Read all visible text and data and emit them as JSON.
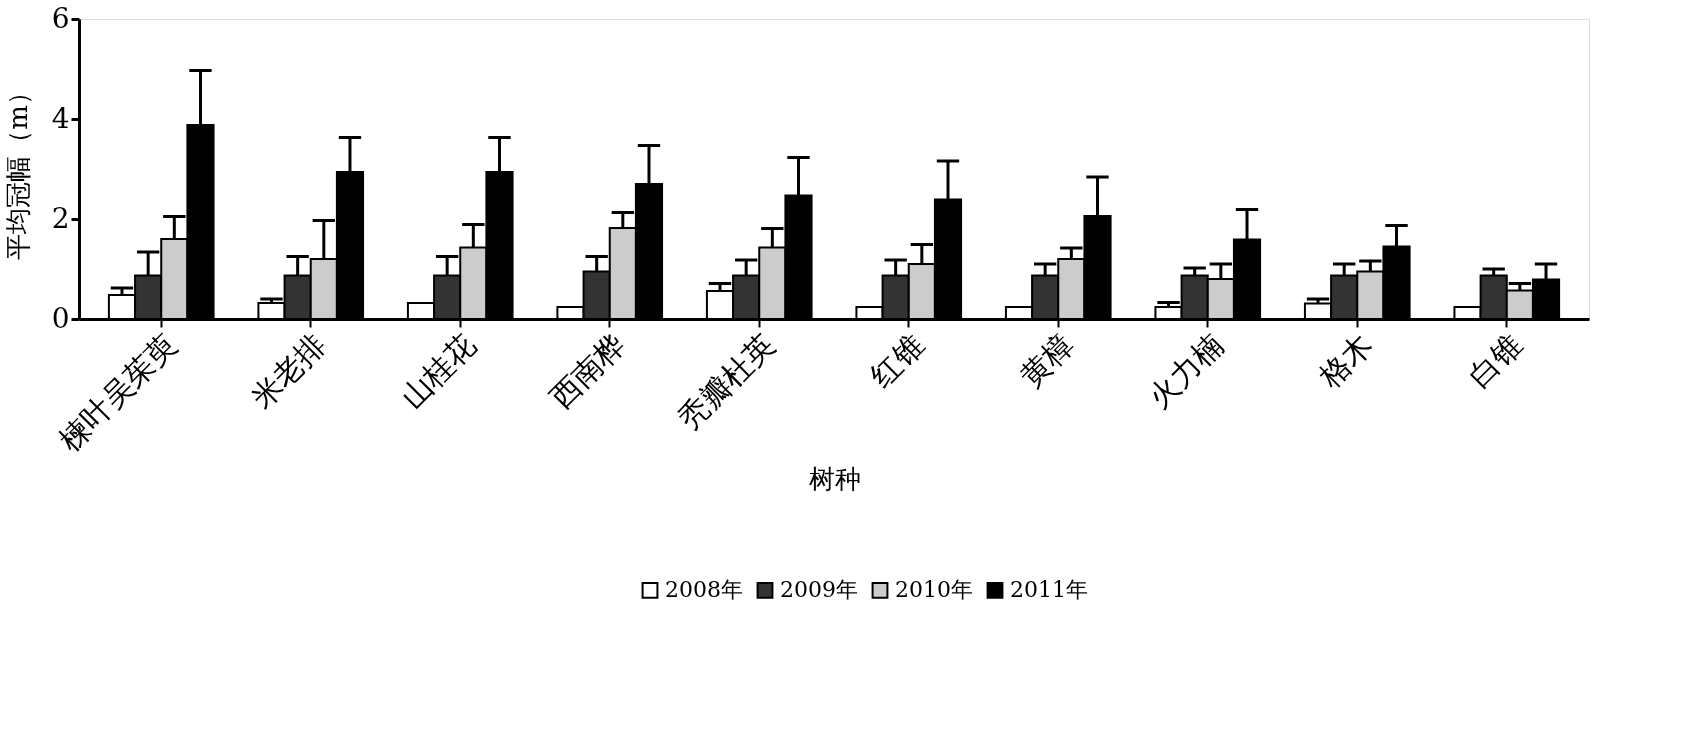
{
  "chart_data": {
    "type": "bar",
    "xlabel": "树种",
    "ylabel": "平均冠幅（m）",
    "categories": [
      "楝叶吴茱萸",
      "米老排",
      "山桂花",
      "西南桦",
      "秃瓣杜英",
      "红锥",
      "黄樟",
      "火力楠",
      "格木",
      "白锥"
    ],
    "ylim": [
      0,
      6
    ],
    "yticks": [
      0,
      2,
      4,
      6
    ],
    "grid": false,
    "legend": "bottom",
    "series": [
      {
        "name": "2008年",
        "color": "#ffffff",
        "values": [
          0.48,
          0.32,
          0.32,
          0.24,
          0.56,
          0.24,
          0.24,
          0.24,
          0.31,
          0.24
        ],
        "errors": [
          [
            0.48,
            0.62
          ],
          [
            0.32,
            0.4
          ],
          null,
          null,
          [
            0.56,
            0.71
          ],
          null,
          null,
          [
            0.24,
            0.33
          ],
          [
            0.31,
            0.4
          ],
          null
        ]
      },
      {
        "name": "2009年",
        "color": "#333333",
        "values": [
          0.87,
          0.87,
          0.87,
          0.95,
          0.87,
          0.87,
          0.87,
          0.87,
          0.87,
          0.87
        ],
        "errors": [
          [
            0.87,
            1.34
          ],
          [
            0.87,
            1.25
          ],
          [
            0.87,
            1.25
          ],
          [
            0.95,
            1.25
          ],
          [
            0.87,
            1.18
          ],
          [
            0.87,
            1.18
          ],
          [
            0.87,
            1.1
          ],
          [
            0.87,
            1.02
          ],
          [
            0.87,
            1.1
          ],
          [
            0.87,
            1.0
          ]
        ]
      },
      {
        "name": "2010年",
        "color": "#cccccc",
        "values": [
          1.6,
          1.2,
          1.43,
          1.82,
          1.43,
          1.1,
          1.2,
          0.8,
          0.95,
          0.57
        ],
        "errors": [
          [
            1.6,
            2.05
          ],
          [
            1.2,
            1.97
          ],
          [
            1.43,
            1.89
          ],
          [
            1.82,
            2.13
          ],
          [
            1.43,
            1.81
          ],
          [
            1.1,
            1.49
          ],
          [
            1.2,
            1.42
          ],
          [
            0.8,
            1.1
          ],
          [
            0.95,
            1.16
          ],
          [
            0.57,
            0.71
          ]
        ]
      },
      {
        "name": "2011年",
        "color": "#000000",
        "values": [
          3.88,
          2.94,
          2.94,
          2.7,
          2.47,
          2.39,
          2.06,
          1.59,
          1.45,
          0.79
        ],
        "errors": [
          [
            3.88,
            4.97
          ],
          [
            2.94,
            3.63
          ],
          [
            2.94,
            3.63
          ],
          [
            2.7,
            3.47
          ],
          [
            2.47,
            3.23
          ],
          [
            2.39,
            3.16
          ],
          [
            2.06,
            2.84
          ],
          [
            1.59,
            2.19
          ],
          [
            1.45,
            1.87
          ],
          [
            0.79,
            1.1
          ]
        ]
      }
    ]
  }
}
